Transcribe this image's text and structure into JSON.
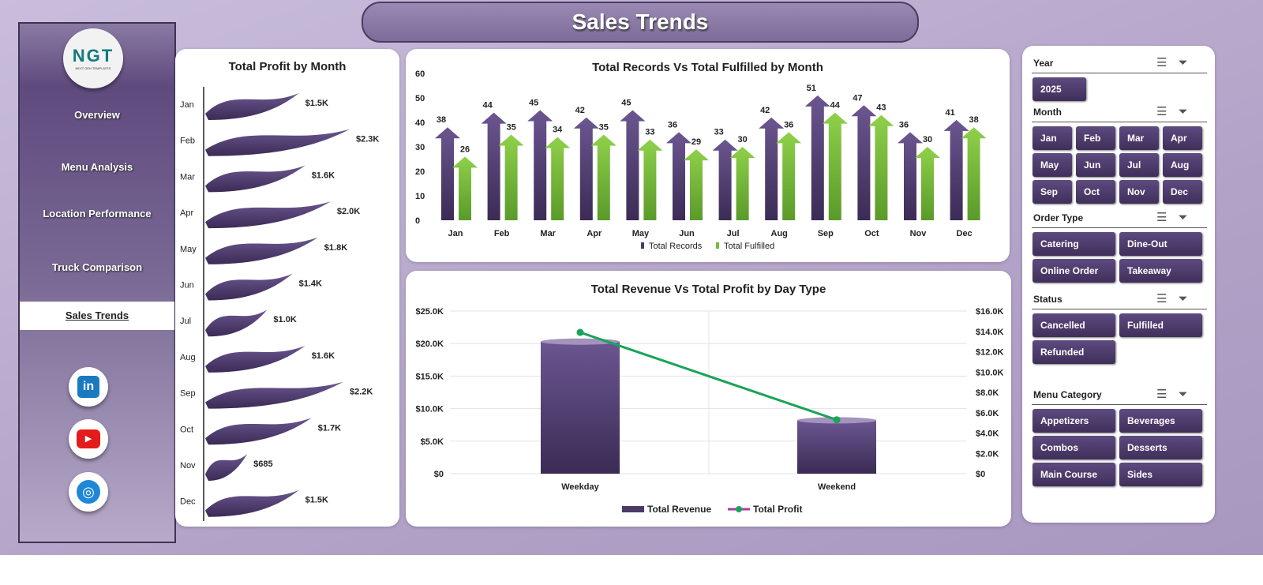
{
  "header": {
    "title": "Sales Trends"
  },
  "sidebar": {
    "logo": {
      "text": "NGT",
      "tagline": "NEXT GEN TEMPLATES"
    },
    "items": [
      {
        "label": "Overview"
      },
      {
        "label": "Menu Analysis"
      },
      {
        "label": "Location Performance"
      },
      {
        "label": "Truck Comparison"
      },
      {
        "label": "Sales Trends",
        "active": true
      }
    ],
    "social": [
      "linkedin-icon",
      "youtube-icon",
      "globe-icon"
    ]
  },
  "colors": {
    "purple": "#4b3a66",
    "green": "#7ab93a",
    "line": "#1aa35a",
    "accent_bg": "#b3a3c8"
  },
  "chart_data": [
    {
      "type": "bar",
      "orientation": "horizontal",
      "title": "Total Profit by Month",
      "categories": [
        "Jan",
        "Feb",
        "Mar",
        "Apr",
        "May",
        "Jun",
        "Jul",
        "Aug",
        "Sep",
        "Oct",
        "Nov",
        "Dec"
      ],
      "values": [
        1500,
        2300,
        1600,
        2000,
        1800,
        1400,
        1000,
        1600,
        2200,
        1700,
        685,
        1500
      ],
      "labels": [
        "$1.5K",
        "$2.3K",
        "$1.6K",
        "$2.0K",
        "$1.8K",
        "$1.4K",
        "$1.0K",
        "$1.6K",
        "$2.2K",
        "$1.7K",
        "$685",
        "$1.5K"
      ]
    },
    {
      "type": "bar",
      "title": "Total Records Vs Total Fulfilled by Month",
      "categories": [
        "Jan",
        "Feb",
        "Mar",
        "Apr",
        "May",
        "Jun",
        "Jul",
        "Aug",
        "Sep",
        "Oct",
        "Nov",
        "Dec"
      ],
      "ylim": [
        0,
        60
      ],
      "yticks": [
        "0",
        "10",
        "20",
        "30",
        "40",
        "50",
        "60"
      ],
      "series": [
        {
          "name": "Total Records",
          "values": [
            38,
            44,
            45,
            42,
            45,
            36,
            33,
            42,
            51,
            47,
            36,
            41
          ]
        },
        {
          "name": "Total Fulfilled",
          "values": [
            26,
            35,
            34,
            35,
            33,
            29,
            30,
            36,
            44,
            43,
            30,
            38
          ]
        }
      ],
      "legend": "bottom"
    },
    {
      "type": "bar+line",
      "title": "Total Revenue  Vs Total Profit by Day Type",
      "categories": [
        "Weekday",
        "Weekend"
      ],
      "ylim": [
        0,
        25000
      ],
      "yticks": [
        "$0",
        "$5.0K",
        "$10.0K",
        "$15.0K",
        "$20.0K",
        "$25.0K"
      ],
      "y2lim": [
        0,
        16000
      ],
      "y2ticks": [
        "$0",
        "$2.0K",
        "$4.0K",
        "$6.0K",
        "$8.0K",
        "$10.0K",
        "$12.0K",
        "$14.0K",
        "$16.0K"
      ],
      "series": [
        {
          "name": "Total Revenue",
          "type": "bar",
          "values": [
            20300,
            8200
          ]
        },
        {
          "name": "Total Profit",
          "type": "line",
          "axis": "secondary",
          "values": [
            13900,
            5300
          ]
        }
      ],
      "legend": "bottom",
      "grid": true
    }
  ],
  "slicers": [
    {
      "label": "Year",
      "items": [
        "2025"
      ]
    },
    {
      "label": "Month",
      "items": [
        "Jan",
        "Feb",
        "Mar",
        "Apr",
        "May",
        "Jun",
        "Jul",
        "Aug",
        "Sep",
        "Oct",
        "Nov",
        "Dec"
      ]
    },
    {
      "label": "Order Type",
      "items": [
        "Catering",
        "Dine-Out",
        "Online Order",
        "Takeaway"
      ]
    },
    {
      "label": "Status",
      "items": [
        "Cancelled",
        "Fulfilled",
        "Refunded"
      ]
    },
    {
      "label": "Menu Category",
      "items": [
        "Appetizers",
        "Beverages",
        "Combos",
        "Desserts",
        "Main Course",
        "Sides"
      ]
    }
  ]
}
